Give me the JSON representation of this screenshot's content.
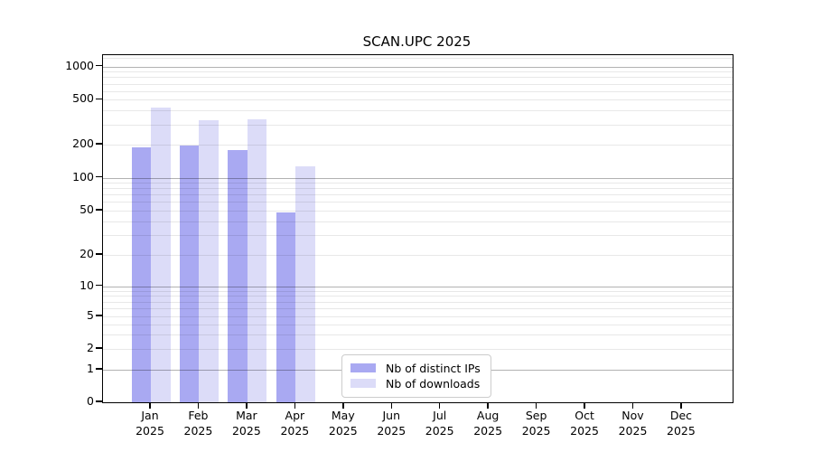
{
  "title": "SCAN.UPC 2025",
  "chart_data": {
    "type": "bar",
    "title": "SCAN.UPC 2025",
    "categories": [
      "Jan",
      "Feb",
      "Mar",
      "Apr",
      "May",
      "Jun",
      "Jul",
      "Aug",
      "Sep",
      "Oct",
      "Nov",
      "Dec"
    ],
    "year_label": "2025",
    "series": [
      {
        "name": "Nb of distinct IPs",
        "color": "#a9a9f2",
        "values": [
          190,
          195,
          180,
          48,
          0,
          0,
          0,
          0,
          0,
          0,
          0,
          0
        ]
      },
      {
        "name": "Nb of downloads",
        "color": "#dcdcf8",
        "values": [
          425,
          330,
          335,
          127,
          0,
          0,
          0,
          0,
          0,
          0,
          0,
          0
        ]
      }
    ],
    "y_ticks": [
      1000,
      500,
      200,
      100,
      50,
      20,
      10,
      5,
      2,
      1,
      0
    ],
    "y_scale": "symlog",
    "ylim": [
      0,
      1270
    ],
    "grid": true,
    "legend_position": "bottom-center-inside",
    "colors": {
      "major_gridline": "#b3b3b3",
      "minor_gridline": "#e8e8e8",
      "axis": "#000000",
      "background": "#ffffff"
    }
  }
}
